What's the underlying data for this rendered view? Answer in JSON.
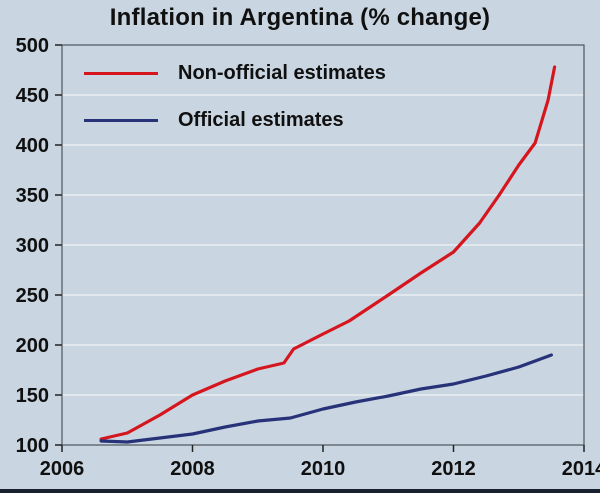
{
  "chart": {
    "title": "Inflation in Argentina (% change)",
    "legend": [
      {
        "label": "Non-official estimates",
        "color": "#d6161e"
      },
      {
        "label": "Official estimates",
        "color": "#283279"
      }
    ]
  },
  "chart_data": {
    "type": "line",
    "title": "Inflation in Argentina (% change)",
    "xlabel": "",
    "ylabel": "",
    "xlim": [
      2006,
      2014
    ],
    "ylim": [
      100,
      500
    ],
    "x_ticks": [
      2006,
      2008,
      2010,
      2012,
      2014
    ],
    "y_ticks": [
      100,
      150,
      200,
      250,
      300,
      350,
      400,
      450,
      500
    ],
    "grid": "horizontal",
    "legend_position": "top-left-inside",
    "series": [
      {
        "name": "Non-official estimates",
        "color": "#d6161e",
        "x": [
          2006.6,
          2007,
          2007.5,
          2008,
          2008.5,
          2009,
          2009.4,
          2009.55,
          2010,
          2010.4,
          2011,
          2011.5,
          2012,
          2012.4,
          2012.7,
          2013,
          2013.25,
          2013.45,
          2013.55
        ],
        "y": [
          106,
          112,
          130,
          150,
          164,
          176,
          182,
          196,
          211,
          224,
          250,
          272,
          293,
          322,
          350,
          380,
          402,
          445,
          478
        ]
      },
      {
        "name": "Official estimates",
        "color": "#283279",
        "x": [
          2006.6,
          2007,
          2007.5,
          2008,
          2008.5,
          2009,
          2009.5,
          2010,
          2010.5,
          2011,
          2011.5,
          2012,
          2012.5,
          2013,
          2013.5
        ],
        "y": [
          104,
          103,
          107,
          111,
          118,
          124,
          127,
          136,
          143,
          149,
          156,
          161,
          169,
          178,
          190
        ]
      }
    ]
  }
}
